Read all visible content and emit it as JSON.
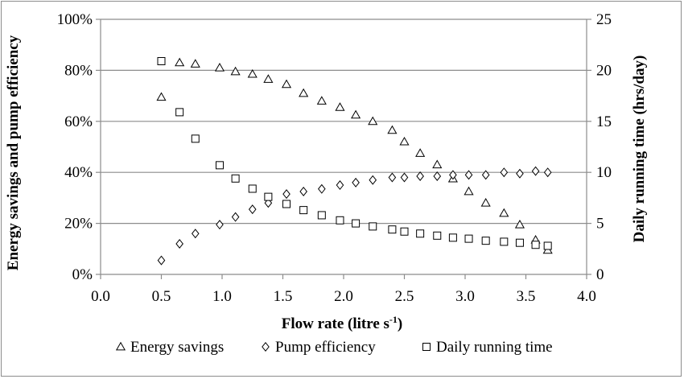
{
  "chart_data": {
    "type": "scatter",
    "title": "",
    "xlabel": "Flow rate (litre s",
    "xlabel_sup": "-1",
    "xlabel_end": ")",
    "ylabel_left": "Energy savings and pump efficiency",
    "ylabel_right": "Daily running time (hrs/day)",
    "xlim": [
      0,
      4
    ],
    "ylim_left": [
      0,
      100
    ],
    "ylim_right": [
      0,
      25
    ],
    "x_ticks": [
      "0.0",
      "0.5",
      "1.0",
      "1.5",
      "2.0",
      "2.5",
      "3.0",
      "3.5",
      "4.0"
    ],
    "y_left_ticks": [
      "0%",
      "20%",
      "40%",
      "60%",
      "80%",
      "100%"
    ],
    "y_right_ticks": [
      "0",
      "5",
      "10",
      "15",
      "20",
      "25"
    ],
    "grid": "horizontal",
    "legend_position": "bottom",
    "series": [
      {
        "name": "Energy savings",
        "marker": "triangle",
        "axis": "left",
        "x": [
          0.5,
          0.65,
          0.78,
          0.98,
          1.11,
          1.25,
          1.38,
          1.53,
          1.67,
          1.82,
          1.97,
          2.1,
          2.24,
          2.4,
          2.5,
          2.63,
          2.77,
          2.9,
          3.03,
          3.17,
          3.32,
          3.45,
          3.58,
          3.68
        ],
        "y": [
          69.5,
          83,
          82.5,
          81,
          79.5,
          78.5,
          76.5,
          74.5,
          71,
          68,
          65.5,
          62.5,
          60,
          56.5,
          52,
          47.5,
          43,
          37.5,
          32.5,
          28,
          24,
          19.5,
          13.5,
          9.5
        ]
      },
      {
        "name": "Pump efficiency",
        "marker": "diamond",
        "axis": "left",
        "x": [
          0.5,
          0.65,
          0.78,
          0.98,
          1.11,
          1.25,
          1.38,
          1.53,
          1.67,
          1.82,
          1.97,
          2.1,
          2.24,
          2.4,
          2.5,
          2.63,
          2.77,
          2.9,
          3.03,
          3.17,
          3.32,
          3.45,
          3.58,
          3.68
        ],
        "y": [
          5.5,
          12,
          16,
          19.5,
          22.5,
          25.5,
          28,
          31.5,
          32.5,
          33.5,
          35,
          36,
          37,
          38,
          38,
          38.5,
          38.5,
          39,
          39,
          39,
          40,
          39.5,
          40.5,
          40
        ]
      },
      {
        "name": "Daily running time",
        "marker": "square",
        "axis": "right",
        "x": [
          0.5,
          0.65,
          0.78,
          0.98,
          1.11,
          1.25,
          1.38,
          1.53,
          1.67,
          1.82,
          1.97,
          2.1,
          2.24,
          2.4,
          2.5,
          2.63,
          2.77,
          2.9,
          3.03,
          3.17,
          3.32,
          3.45,
          3.58,
          3.68
        ],
        "y": [
          20.9,
          15.9,
          13.3,
          10.7,
          9.4,
          8.4,
          7.6,
          6.9,
          6.3,
          5.8,
          5.3,
          5.0,
          4.7,
          4.4,
          4.2,
          4.0,
          3.8,
          3.6,
          3.5,
          3.3,
          3.2,
          3.1,
          2.9,
          2.8
        ]
      }
    ]
  }
}
